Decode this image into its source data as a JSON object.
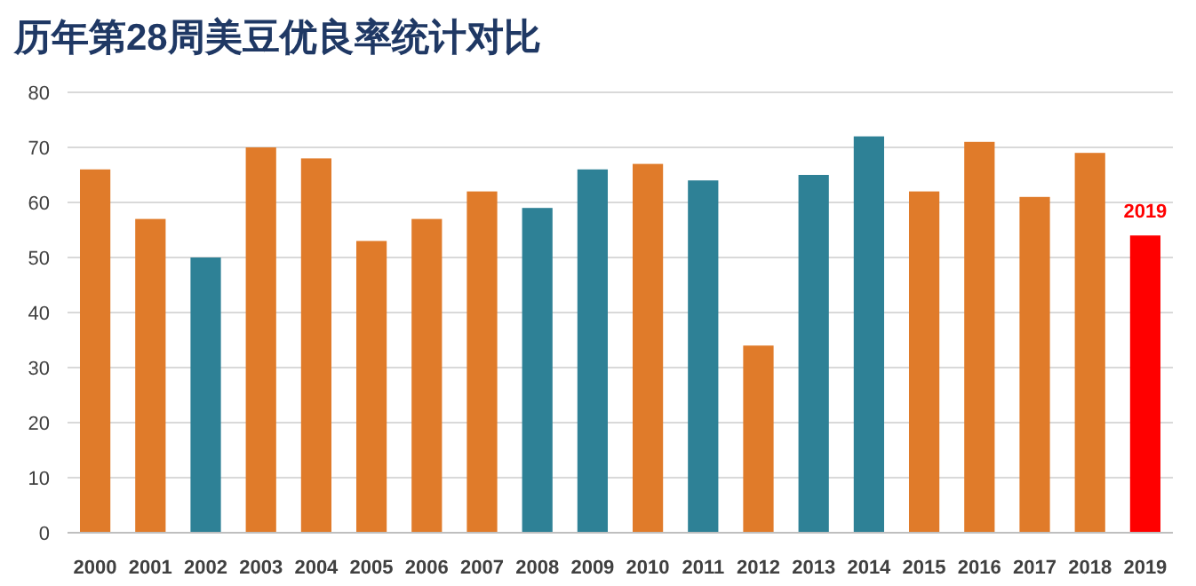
{
  "chart_data": {
    "type": "bar",
    "title": "历年第28周美豆优良率统计对比",
    "categories": [
      "2000",
      "2001",
      "2002",
      "2003",
      "2004",
      "2005",
      "2006",
      "2007",
      "2008",
      "2009",
      "2010",
      "2011",
      "2012",
      "2013",
      "2014",
      "2015",
      "2016",
      "2017",
      "2018",
      "2019"
    ],
    "values": [
      66,
      57,
      50,
      70,
      68,
      53,
      57,
      62,
      59,
      66,
      67,
      64,
      34,
      65,
      72,
      62,
      71,
      61,
      69,
      54
    ],
    "colors": [
      "#e07b2a",
      "#e07b2a",
      "#2e8196",
      "#e07b2a",
      "#e07b2a",
      "#e07b2a",
      "#e07b2a",
      "#e07b2a",
      "#2e8196",
      "#2e8196",
      "#e07b2a",
      "#2e8196",
      "#e07b2a",
      "#2e8196",
      "#2e8196",
      "#e07b2a",
      "#e07b2a",
      "#e07b2a",
      "#e07b2a",
      "#ff0000"
    ],
    "ylim": [
      0,
      80
    ],
    "yticks": [
      0,
      10,
      20,
      30,
      40,
      50,
      60,
      70,
      80
    ],
    "grid": "y",
    "annotations": [
      {
        "text": "2019",
        "x": "2019",
        "y": 54
      }
    ]
  }
}
